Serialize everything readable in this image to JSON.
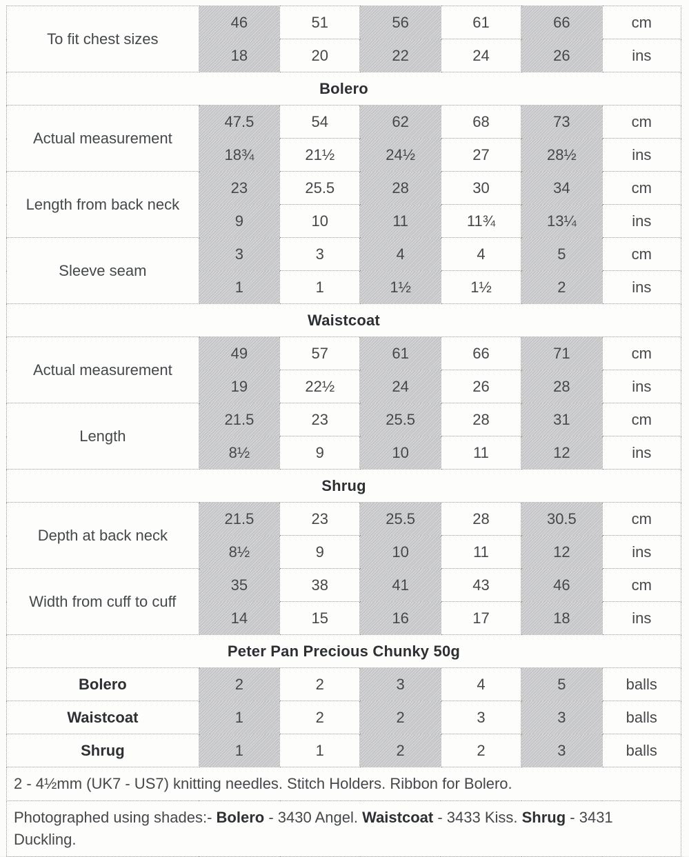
{
  "page": {
    "background_color": "#fcfcfa",
    "shade_color": "#c9cacc",
    "border_color": "#9a9a9a",
    "text_color": "#45484b"
  },
  "size_table": {
    "units": {
      "cm": "cm",
      "ins": "ins",
      "balls": "balls"
    },
    "chest_row": {
      "label": "To fit chest sizes",
      "cm": [
        "46",
        "51",
        "56",
        "61",
        "66"
      ],
      "ins": [
        "18",
        "20",
        "22",
        "24",
        "26"
      ]
    },
    "sections": [
      {
        "title": "Bolero",
        "rows": [
          {
            "label": "Actual measurement",
            "cm": [
              "47.5",
              "54",
              "62",
              "68",
              "73"
            ],
            "ins": [
              "18¾",
              "21½",
              "24½",
              "27",
              "28½"
            ]
          },
          {
            "label": "Length from back neck",
            "cm": [
              "23",
              "25.5",
              "28",
              "30",
              "34"
            ],
            "ins": [
              "9",
              "10",
              "11",
              "11¾",
              "13¼"
            ]
          },
          {
            "label": "Sleeve seam",
            "cm": [
              "3",
              "3",
              "4",
              "4",
              "5"
            ],
            "ins": [
              "1",
              "1",
              "1½",
              "1½",
              "2"
            ]
          }
        ]
      },
      {
        "title": "Waistcoat",
        "rows": [
          {
            "label": "Actual measurement",
            "cm": [
              "49",
              "57",
              "61",
              "66",
              "71"
            ],
            "ins": [
              "19",
              "22½",
              "24",
              "26",
              "28"
            ]
          },
          {
            "label": "Length",
            "cm": [
              "21.5",
              "23",
              "25.5",
              "28",
              "31"
            ],
            "ins": [
              "8½",
              "9",
              "10",
              "11",
              "12"
            ]
          }
        ]
      },
      {
        "title": "Shrug",
        "rows": [
          {
            "label": "Depth at back neck",
            "cm": [
              "21.5",
              "23",
              "25.5",
              "28",
              "30.5"
            ],
            "ins": [
              "8½",
              "9",
              "10",
              "11",
              "12"
            ]
          },
          {
            "label": "Width from cuff to cuff",
            "cm": [
              "35",
              "38",
              "41",
              "43",
              "46"
            ],
            "ins": [
              "14",
              "15",
              "16",
              "17",
              "18"
            ]
          }
        ]
      }
    ],
    "yarn_section": {
      "title": "Peter Pan Precious Chunky 50g",
      "rows": [
        {
          "label": "Bolero",
          "values": [
            "2",
            "2",
            "3",
            "4",
            "5"
          ]
        },
        {
          "label": "Waistcoat",
          "values": [
            "1",
            "2",
            "2",
            "3",
            "3"
          ]
        },
        {
          "label": "Shrug",
          "values": [
            "1",
            "1",
            "2",
            "2",
            "3"
          ]
        }
      ]
    },
    "notes": {
      "needles": "2 - 4½mm (UK7 - US7) knitting needles. Stitch Holders. Ribbon for Bolero.",
      "shades_segments": [
        {
          "text": "Photographed using shades:-  ",
          "bold": false
        },
        {
          "text": "Bolero",
          "bold": true
        },
        {
          "text": " - 3430 Angel. ",
          "bold": false
        },
        {
          "text": "Waistcoat",
          "bold": true
        },
        {
          "text": " - 3433 Kiss. ",
          "bold": false
        },
        {
          "text": "Shrug",
          "bold": true
        },
        {
          "text": " - 3431 Duckling.",
          "bold": false
        }
      ]
    }
  }
}
